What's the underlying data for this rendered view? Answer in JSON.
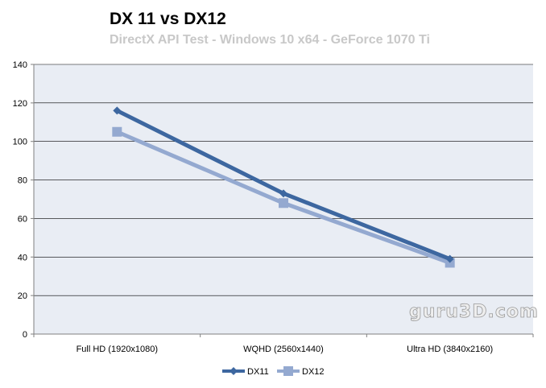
{
  "chart_data": {
    "type": "line",
    "title": "DX 11 vs DX12",
    "subtitle": "DirectX API Test - Windows 10 x64  - GeForce 1070 Ti",
    "xlabel": "",
    "ylabel": "",
    "categories": [
      "Full HD (1920x1080)",
      "WQHD (2560x1440)",
      "Ultra HD (3840x2160)"
    ],
    "ylim": [
      0,
      140
    ],
    "yticks": [
      0,
      20,
      40,
      60,
      80,
      100,
      120,
      140
    ],
    "grid": true,
    "legend_position": "bottom",
    "series": [
      {
        "name": "DX11",
        "values": [
          116,
          73,
          39
        ],
        "color": "#3d67a0",
        "marker": "diamond"
      },
      {
        "name": "DX12",
        "values": [
          105,
          68,
          37
        ],
        "color": "#94a9d0",
        "marker": "square"
      }
    ],
    "plot_background": "#e9edf4"
  },
  "watermark": "guru3D.com"
}
